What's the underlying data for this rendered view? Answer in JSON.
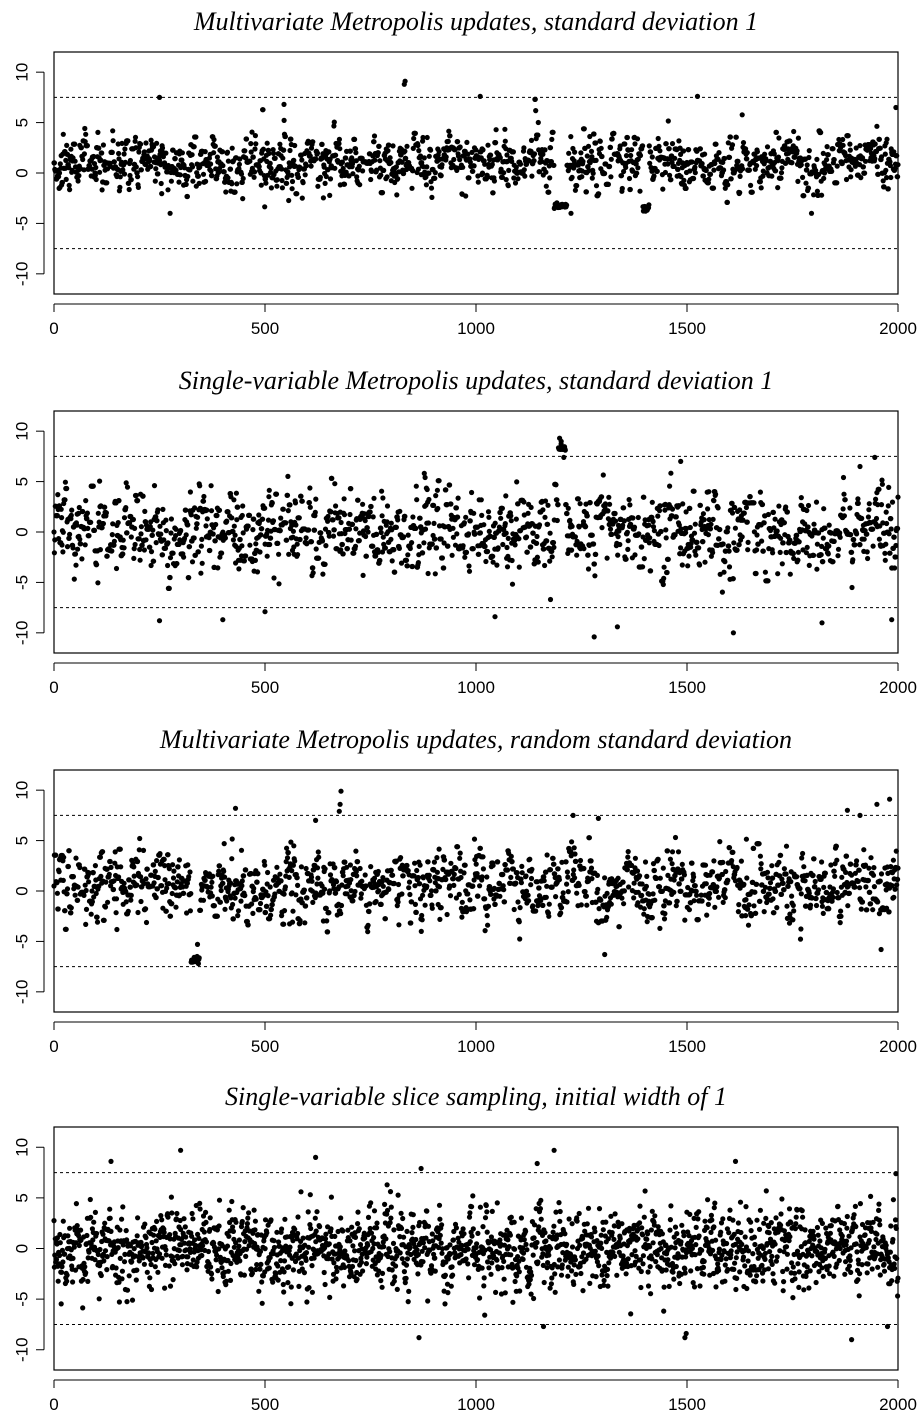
{
  "figure": {
    "background": "#ffffff",
    "point_color": "#000000"
  },
  "chart_data": [
    {
      "type": "scatter",
      "title": "Multivariate Metropolis updates, standard deviation 1",
      "xlabel": "",
      "ylabel": "",
      "xlim": [
        0,
        2000
      ],
      "ylim": [
        -12,
        12
      ],
      "xticks": [
        "0",
        "500",
        "1000",
        "1500",
        "2000"
      ],
      "yticks": [
        "-10",
        "-5",
        "0",
        "5",
        "10"
      ],
      "reference_lines": [
        -7.5,
        7.5
      ],
      "n_points": 2000,
      "center": 1.0,
      "spread": 2.0,
      "max_step": 4,
      "segments": [
        {
          "start": 1185,
          "end": 1215,
          "value": -3.3
        },
        {
          "start": 1395,
          "end": 1410,
          "value": -3.5
        }
      ],
      "highlights": [
        {
          "x": 250,
          "y": 7.5
        },
        {
          "x": 830,
          "y": 8.8
        },
        {
          "x": 832,
          "y": 9.1
        },
        {
          "x": 1010,
          "y": 7.6
        },
        {
          "x": 1525,
          "y": 7.6
        },
        {
          "x": 1995,
          "y": 6.5
        },
        {
          "x": 545,
          "y": 6.8
        },
        {
          "x": 1225,
          "y": -4.0
        },
        {
          "x": 1795,
          "y": -4.0
        },
        {
          "x": 275,
          "y": -4.0
        }
      ],
      "seed": 11
    },
    {
      "type": "scatter",
      "title": "Single-variable Metropolis updates, standard deviation 1",
      "xlabel": "",
      "ylabel": "",
      "xlim": [
        0,
        2000
      ],
      "ylim": [
        -12,
        12
      ],
      "xticks": [
        "0",
        "500",
        "1000",
        "1500",
        "2000"
      ],
      "yticks": [
        "-10",
        "-5",
        "0",
        "5",
        "10"
      ],
      "reference_lines": [
        -7.5,
        7.5
      ],
      "n_points": 2000,
      "center": 0.0,
      "spread": 3.0,
      "max_step": 2,
      "segments": [
        {
          "start": 1195,
          "end": 1212,
          "value": 8.3
        }
      ],
      "highlights": [
        {
          "x": 1198,
          "y": 9.3
        },
        {
          "x": 1202,
          "y": 9.0
        },
        {
          "x": 1208,
          "y": 7.4
        },
        {
          "x": 1485,
          "y": 7.0
        },
        {
          "x": 1280,
          "y": -10.4
        },
        {
          "x": 1610,
          "y": -10.0
        },
        {
          "x": 1335,
          "y": -9.4
        },
        {
          "x": 250,
          "y": -8.8
        },
        {
          "x": 400,
          "y": -8.7
        },
        {
          "x": 1045,
          "y": -8.4
        },
        {
          "x": 1985,
          "y": -8.7
        },
        {
          "x": 1820,
          "y": -9.0
        },
        {
          "x": 500,
          "y": -7.9
        },
        {
          "x": 1945,
          "y": 7.4
        },
        {
          "x": 1910,
          "y": 6.5
        }
      ],
      "seed": 23
    },
    {
      "type": "scatter",
      "title": "Multivariate Metropolis updates, random standard deviation",
      "xlabel": "",
      "ylabel": "",
      "xlim": [
        0,
        2000
      ],
      "ylim": [
        -12,
        12
      ],
      "xticks": [
        "0",
        "500",
        "1000",
        "1500",
        "2000"
      ],
      "yticks": [
        "-10",
        "-5",
        "0",
        "5",
        "10"
      ],
      "reference_lines": [
        -7.5,
        7.5
      ],
      "n_points": 2000,
      "center": 0.5,
      "spread": 2.5,
      "max_step": 3,
      "segments": [
        {
          "start": 325,
          "end": 345,
          "value": -6.8
        }
      ],
      "highlights": [
        {
          "x": 680,
          "y": 9.9
        },
        {
          "x": 678,
          "y": 8.6
        },
        {
          "x": 676,
          "y": 7.9
        },
        {
          "x": 1980,
          "y": 9.1
        },
        {
          "x": 1950,
          "y": 8.6
        },
        {
          "x": 1880,
          "y": 8.0
        },
        {
          "x": 1910,
          "y": 7.5
        },
        {
          "x": 1230,
          "y": 7.5
        },
        {
          "x": 1290,
          "y": 7.2
        },
        {
          "x": 430,
          "y": 8.2
        },
        {
          "x": 620,
          "y": 7.0
        },
        {
          "x": 340,
          "y": -5.3
        },
        {
          "x": 1305,
          "y": -6.3
        },
        {
          "x": 1960,
          "y": -5.8
        }
      ],
      "seed": 37
    },
    {
      "type": "scatter",
      "title": "Single-variable slice sampling, initial width of 1",
      "xlabel": "",
      "ylabel": "",
      "xlim": [
        0,
        2000
      ],
      "ylim": [
        -12,
        12
      ],
      "xticks": [
        "0",
        "500",
        "1000",
        "1500",
        "2000"
      ],
      "yticks": [
        "-10",
        "-5",
        "0",
        "5",
        "10"
      ],
      "reference_lines": [
        -7.5,
        7.5
      ],
      "n_points": 2000,
      "center": 0.0,
      "spread": 3.0,
      "max_step": 1,
      "segments": [],
      "highlights": [
        {
          "x": 300,
          "y": 9.7
        },
        {
          "x": 1185,
          "y": 9.7
        },
        {
          "x": 135,
          "y": 8.6
        },
        {
          "x": 620,
          "y": 9.0
        },
        {
          "x": 1615,
          "y": 8.6
        },
        {
          "x": 1145,
          "y": 8.4
        },
        {
          "x": 870,
          "y": 7.9
        },
        {
          "x": 1995,
          "y": 7.4
        },
        {
          "x": 865,
          "y": -8.8
        },
        {
          "x": 1495,
          "y": -8.8
        },
        {
          "x": 1890,
          "y": -9.0
        },
        {
          "x": 1498,
          "y": -8.4
        },
        {
          "x": 1160,
          "y": -7.7
        },
        {
          "x": 1975,
          "y": -7.7
        }
      ],
      "seed": 53
    }
  ]
}
